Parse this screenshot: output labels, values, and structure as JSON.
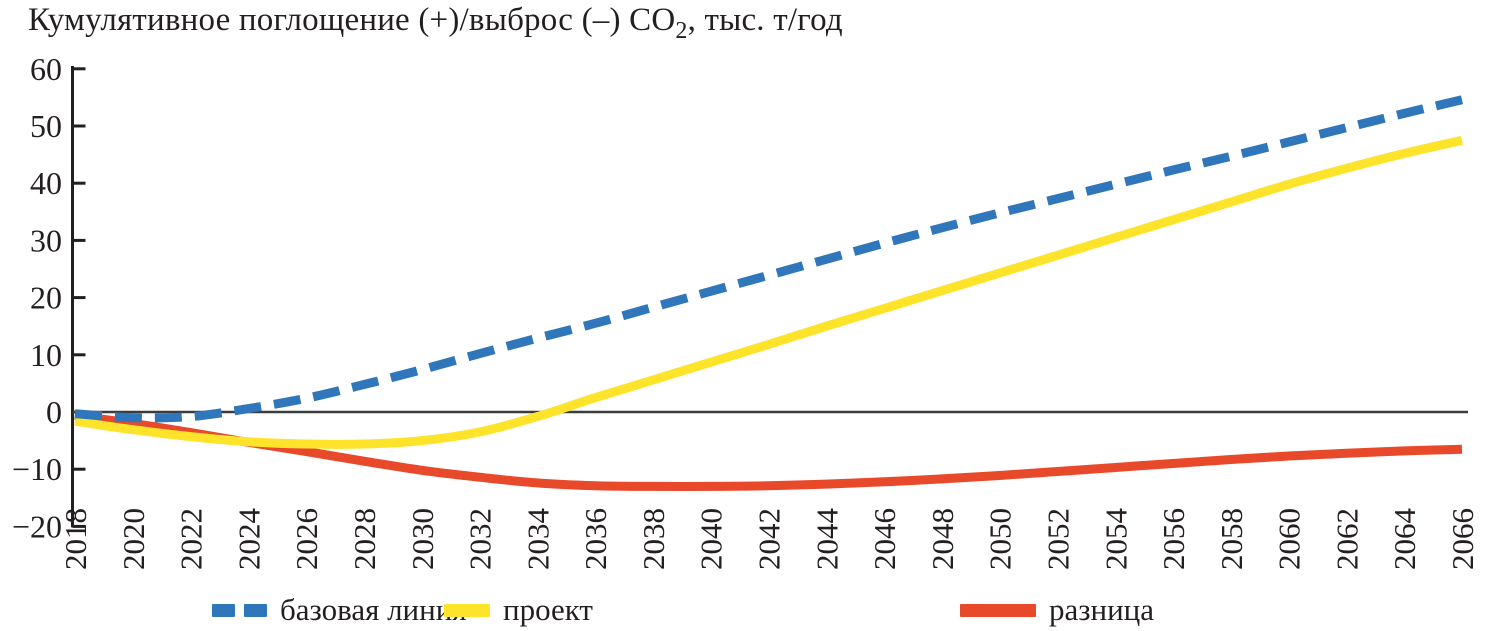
{
  "title": {
    "prefix": "Кумулятивное поглощение (+)/выброс (–) CO",
    "subscript": "2",
    "suffix": ", тыс. т/год"
  },
  "colors": {
    "baseline": "#2f76ba",
    "project": "#fde32a",
    "difference": "#e8492a",
    "axis": "#231f20",
    "zero_line": "#3c3c3b"
  },
  "chart_data": {
    "type": "line",
    "title": "Кумулятивное поглощение (+)/выброс (–) CO2, тыс. т/год",
    "xlabel": "",
    "ylabel": "",
    "xlim": [
      2018,
      2066
    ],
    "ylim": [
      -20,
      60
    ],
    "grid": false,
    "zero_line": true,
    "legend_position": "bottom",
    "x": [
      2018,
      2020,
      2022,
      2024,
      2026,
      2028,
      2030,
      2032,
      2034,
      2036,
      2038,
      2040,
      2042,
      2044,
      2046,
      2048,
      2050,
      2052,
      2054,
      2056,
      2058,
      2060,
      2062,
      2064,
      2066
    ],
    "x_tick_labels": [
      "2018",
      "2020",
      "2022",
      "2024",
      "2026",
      "2028",
      "2030",
      "2032",
      "2034",
      "2036",
      "2038",
      "2040",
      "2042",
      "2044",
      "2046",
      "2048",
      "2050",
      "2052",
      "2054",
      "2056",
      "2058",
      "2060",
      "2062",
      "2064",
      "2066"
    ],
    "y_ticks": [
      {
        "value": 60,
        "label": "60"
      },
      {
        "value": 50,
        "label": "50"
      },
      {
        "value": 40,
        "label": "40"
      },
      {
        "value": 30,
        "label": "30"
      },
      {
        "value": 20,
        "label": "20"
      },
      {
        "value": 10,
        "label": "10"
      },
      {
        "value": 0,
        "label": "0"
      },
      {
        "value": -10,
        "label": "−10"
      },
      {
        "value": -20,
        "label": "−20"
      }
    ],
    "series": [
      {
        "name": "базовая линия",
        "style": "dashed",
        "color": "#2f76ba",
        "values": [
          -0.3,
          -1.0,
          -0.8,
          0.6,
          2.4,
          4.8,
          7.4,
          10.2,
          12.9,
          15.5,
          18.3,
          21.1,
          23.9,
          26.7,
          29.5,
          32.2,
          34.8,
          37.3,
          39.8,
          42.3,
          44.7,
          47.2,
          49.7,
          52.2,
          54.6
        ]
      },
      {
        "name": "проект",
        "style": "solid",
        "color": "#fde32a",
        "values": [
          -1.6,
          -3.1,
          -4.3,
          -5.2,
          -5.6,
          -5.6,
          -5.0,
          -3.5,
          -0.8,
          2.5,
          5.6,
          8.7,
          11.8,
          15.0,
          18.1,
          21.2,
          24.3,
          27.4,
          30.5,
          33.6,
          36.7,
          39.8,
          42.6,
          45.2,
          47.5
        ]
      },
      {
        "name": "разница",
        "style": "solid",
        "color": "#e8492a",
        "values": [
          -0.6,
          -2.0,
          -3.6,
          -5.3,
          -6.9,
          -8.6,
          -10.2,
          -11.4,
          -12.4,
          -12.9,
          -13.0,
          -13.0,
          -12.9,
          -12.6,
          -12.2,
          -11.7,
          -11.1,
          -10.4,
          -9.7,
          -9.0,
          -8.3,
          -7.7,
          -7.2,
          -6.8,
          -6.5
        ]
      }
    ]
  },
  "legend": {
    "items": [
      {
        "label": "базовая линия"
      },
      {
        "label": "проект"
      },
      {
        "label": "разница"
      }
    ]
  }
}
